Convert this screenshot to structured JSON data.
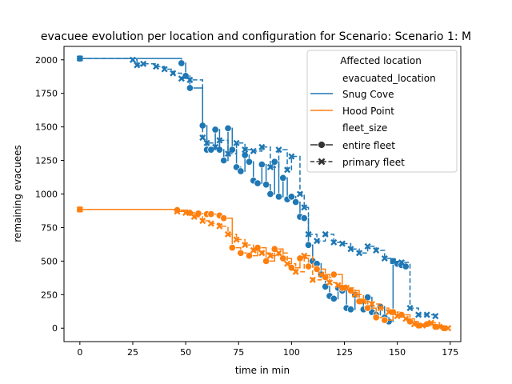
{
  "chart_data": {
    "type": "line",
    "title": "evacuee evolution per location and configuration for Scenario: Scenario 1: M",
    "xlabel": "time in min",
    "ylabel": "remaining evacuees",
    "xlim": [
      -7.5,
      180
    ],
    "ylim": [
      -100,
      2100
    ],
    "xticks": [
      0,
      25,
      50,
      75,
      100,
      125,
      150,
      175
    ],
    "yticks": [
      0,
      250,
      500,
      750,
      1000,
      1250,
      1500,
      1750,
      2000
    ],
    "grid": false,
    "legend": {
      "placement": "top-right",
      "title": "Affected location",
      "hue_header": "evacuated_location",
      "style_header": "fleet_size"
    },
    "series": [
      {
        "name": "Snug Cove",
        "style": "entire fleet",
        "color": "#1f77b4",
        "dashed": false,
        "marker": "circle",
        "x": [
          0,
          48,
          50,
          52,
          58,
          60,
          62,
          64,
          66,
          68,
          70,
          72,
          74,
          76,
          78,
          80,
          82,
          84,
          86,
          88,
          90,
          92,
          94,
          96,
          98,
          100,
          102,
          104,
          106,
          108,
          110,
          112,
          114,
          116,
          118,
          120,
          122,
          124,
          126,
          128,
          130,
          132,
          134,
          136,
          138,
          140,
          142,
          144,
          146,
          148,
          150,
          152,
          154
        ],
        "y": [
          2010,
          1975,
          1880,
          1790,
          1510,
          1330,
          1330,
          1480,
          1330,
          1250,
          1490,
          1330,
          1200,
          1170,
          1290,
          1240,
          1100,
          1080,
          1220,
          1070,
          1000,
          1240,
          980,
          1120,
          960,
          980,
          940,
          830,
          820,
          620,
          500,
          480,
          400,
          310,
          240,
          220,
          300,
          280,
          150,
          140,
          250,
          200,
          140,
          230,
          120,
          100,
          160,
          80,
          50,
          500,
          480,
          470,
          460
        ]
      },
      {
        "name": "Snug Cove",
        "style": "primary fleet",
        "color": "#1f77b4",
        "dashed": true,
        "marker": "x",
        "x": [
          0,
          25,
          27,
          30,
          36,
          40,
          44,
          48,
          52,
          58,
          60,
          64,
          66,
          70,
          74,
          78,
          82,
          86,
          90,
          94,
          98,
          100,
          104,
          106,
          108,
          112,
          116,
          120,
          124,
          128,
          132,
          136,
          140,
          144,
          148,
          152,
          156,
          160,
          164,
          168
        ],
        "y": [
          2010,
          2000,
          1960,
          1970,
          1950,
          1930,
          1900,
          1860,
          1850,
          1420,
          1380,
          1350,
          1400,
          1300,
          1380,
          1330,
          1320,
          1350,
          1200,
          1330,
          1180,
          1280,
          1000,
          900,
          700,
          650,
          700,
          640,
          630,
          590,
          560,
          610,
          580,
          520,
          500,
          490,
          150,
          100,
          100,
          90
        ]
      },
      {
        "name": "Hood Point",
        "style": "entire fleet",
        "color": "#ff7f0e",
        "dashed": false,
        "marker": "circle",
        "x": [
          0,
          46,
          52,
          56,
          60,
          62,
          66,
          68,
          72,
          76,
          80,
          84,
          88,
          92,
          96,
          100,
          104,
          108,
          112,
          116,
          120,
          124,
          128,
          132,
          136,
          140,
          144,
          148,
          152,
          156,
          160,
          164,
          168,
          172
        ],
        "y": [
          885,
          880,
          860,
          855,
          850,
          850,
          840,
          820,
          600,
          560,
          540,
          600,
          500,
          590,
          520,
          450,
          520,
          460,
          440,
          380,
          400,
          300,
          280,
          200,
          150,
          80,
          60,
          120,
          100,
          50,
          20,
          30,
          10,
          0
        ]
      },
      {
        "name": "Hood Point",
        "style": "primary fleet",
        "color": "#ff7f0e",
        "dashed": true,
        "marker": "x",
        "x": [
          0,
          46,
          50,
          54,
          58,
          62,
          66,
          70,
          74,
          78,
          82,
          86,
          90,
          94,
          98,
          102,
          106,
          110,
          114,
          118,
          122,
          126,
          130,
          134,
          138,
          142,
          146,
          150,
          154,
          158,
          162,
          166,
          170,
          174
        ],
        "y": [
          885,
          870,
          860,
          830,
          800,
          780,
          760,
          700,
          660,
          620,
          580,
          560,
          540,
          560,
          480,
          420,
          540,
          360,
          400,
          340,
          320,
          300,
          250,
          200,
          180,
          150,
          120,
          90,
          70,
          30,
          20,
          40,
          10,
          0
        ]
      }
    ]
  }
}
